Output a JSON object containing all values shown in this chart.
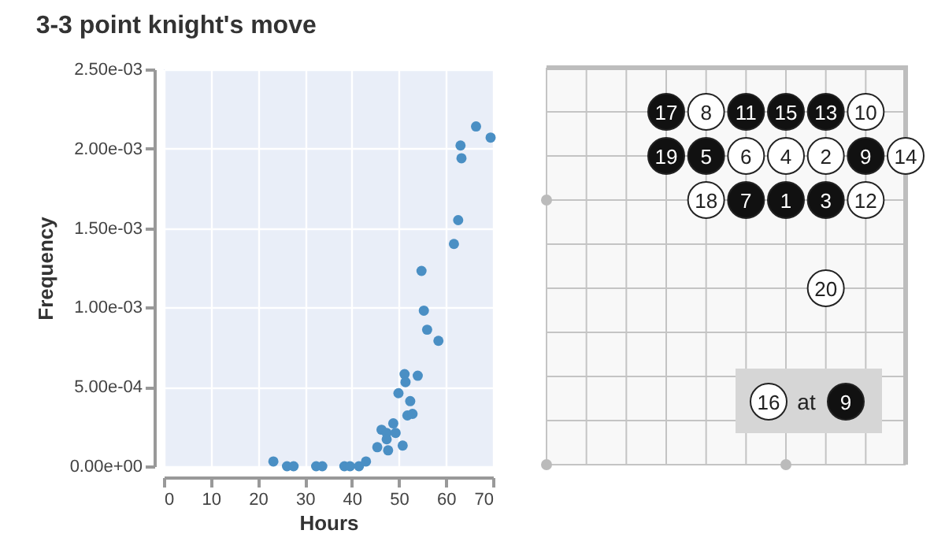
{
  "chart_data": [
    {
      "type": "scatter",
      "title": "3-3 point knight's move",
      "xlabel": "Hours",
      "ylabel": "Frequency",
      "x": [
        23.3,
        26.2,
        27.6,
        32.4,
        33.7,
        38.4,
        39.6,
        41.5,
        43.0,
        45.4,
        46.3,
        47.4,
        47.4,
        47.7,
        48.8,
        49.3,
        49.9,
        50.8,
        51.2,
        51.4,
        51.8,
        52.4,
        52.9,
        54.0,
        54.8,
        55.3,
        56.0,
        58.4,
        61.7,
        62.6,
        63.1,
        63.3,
        66.4,
        69.5
      ],
      "series": [
        {
          "color": "#4a8fc4",
          "values": [
            3e-05,
            0,
            0,
            0,
            0,
            0,
            0,
            0,
            3e-05,
            0.00012,
            0.00023,
            0.00021,
            0.00017,
            0.0001,
            0.00027,
            0.00021,
            0.00046,
            0.00013,
            0.00058,
            0.00053,
            0.00032,
            0.00041,
            0.00033,
            0.00057,
            0.00123,
            0.00098,
            0.00086,
            0.00079,
            0.0014,
            0.00155,
            0.00202,
            0.00194,
            0.00214,
            0.00207
          ]
        }
      ],
      "xlim": [
        0,
        70
      ],
      "xticks": [
        0,
        10,
        20,
        30,
        40,
        50,
        60,
        70
      ],
      "ylim": [
        0,
        0.0025
      ],
      "yticks": [
        {
          "value": 0,
          "label": "0.00e+00"
        },
        {
          "value": 0.0005,
          "label": "5.00e-04"
        },
        {
          "value": 0.001,
          "label": "1.00e-03"
        },
        {
          "value": 0.0015,
          "label": "1.50e-03"
        },
        {
          "value": 0.002,
          "label": "2.00e-03"
        },
        {
          "value": 0.0025,
          "label": "2.50e-03"
        }
      ],
      "grid": true,
      "marker": "circle",
      "legend": false
    },
    {
      "type": "other",
      "annotations": [
        "17",
        "8",
        "11",
        "15",
        "13",
        "10",
        "19",
        "5",
        "6",
        "4",
        "2",
        "9",
        "14",
        "18",
        "7",
        "1",
        "3",
        "12",
        "20",
        "16 at 9"
      ]
    }
  ]
}
